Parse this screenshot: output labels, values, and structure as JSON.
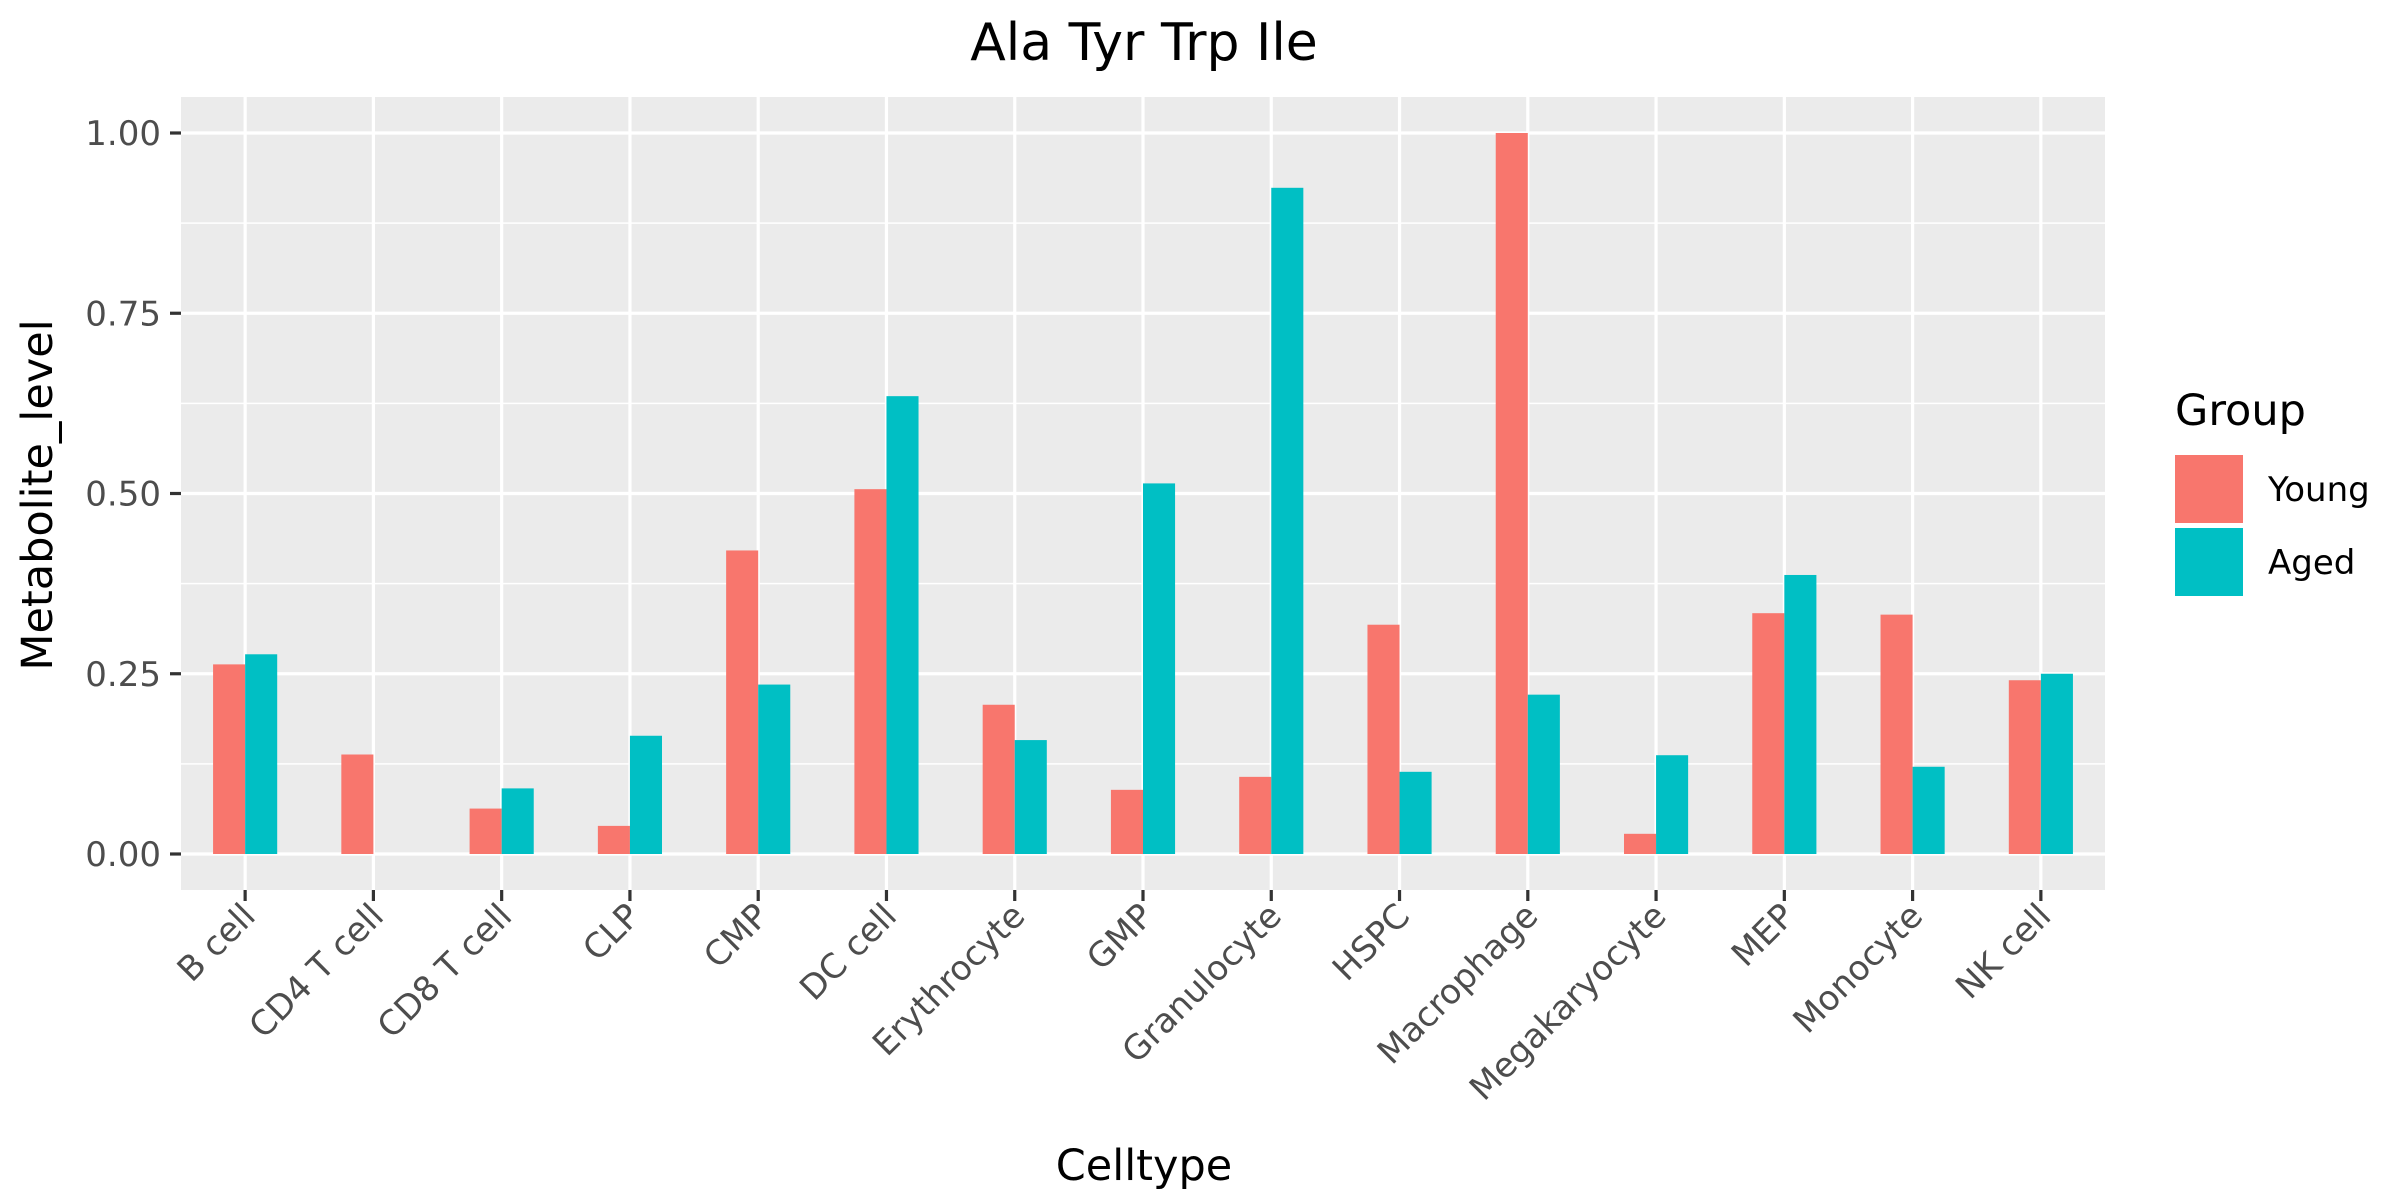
{
  "chart_data": {
    "type": "bar",
    "title": "Ala Tyr Trp Ile",
    "xlabel": "Celltype",
    "ylabel": "Metabolite_level",
    "categories": [
      "B cell",
      "CD4 T cell",
      "CD8 T cell",
      "CLP",
      "CMP",
      "DC cell",
      "Erythrocyte",
      "GMP",
      "Granulocyte",
      "HSPC",
      "Macrophage",
      "Megakaryocyte",
      "MEP",
      "Monocyte",
      "NK cell"
    ],
    "series": [
      {
        "name": "Young",
        "color": "#F8766D",
        "values": [
          0.263,
          0.138,
          0.063,
          0.039,
          0.421,
          0.506,
          0.207,
          0.089,
          0.107,
          0.318,
          1.0,
          0.028,
          0.334,
          0.332,
          0.241
        ]
      },
      {
        "name": "Aged",
        "color": "#00BFC4",
        "values": [
          0.277,
          null,
          0.091,
          0.164,
          0.235,
          0.635,
          0.158,
          0.514,
          0.924,
          0.114,
          0.221,
          0.137,
          0.387,
          0.121,
          0.25
        ]
      }
    ],
    "ylim": [
      -0.052,
      1.052
    ],
    "yticks": [
      0.0,
      0.25,
      0.5,
      0.75,
      1.0
    ],
    "ytick_labels": [
      "0.00",
      "0.25",
      "0.50",
      "0.75",
      "1.00"
    ],
    "grid": true,
    "legend": {
      "title": "Group",
      "position": "right"
    },
    "panel_background": "#EBEBEB"
  }
}
